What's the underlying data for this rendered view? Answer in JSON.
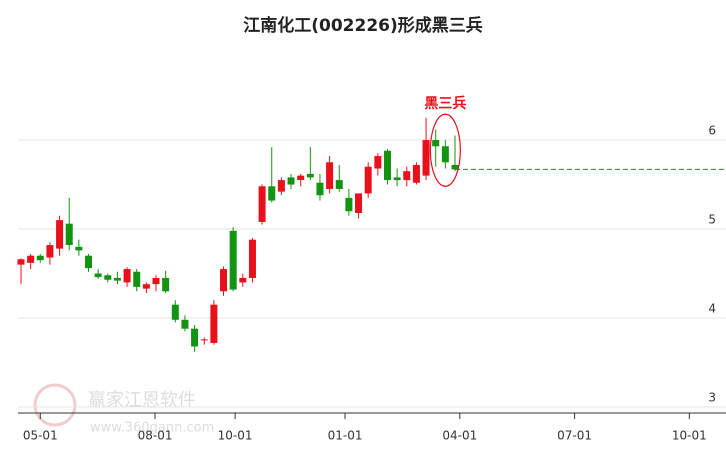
{
  "chart_data": {
    "type": "candlestick",
    "title": "江南化工(002226)形成黑三兵",
    "annotation": "黑三兵",
    "watermark": {
      "brand": "赢家江恩软件",
      "url": "www.360gann.com"
    },
    "up_color": "#e8101a",
    "down_color": "#129312",
    "annotation_color": "#e8101a",
    "x": [
      0,
      1,
      2,
      3,
      4,
      5,
      6,
      7,
      8,
      9,
      10,
      11,
      12,
      13,
      14,
      15,
      16,
      17,
      18,
      19,
      20,
      21,
      22,
      23,
      24,
      25,
      26,
      27,
      28,
      29,
      30,
      31,
      32,
      33,
      34,
      35,
      36,
      37,
      38,
      39,
      40,
      41,
      42,
      43,
      44,
      45
    ],
    "open": [
      4.6,
      4.62,
      4.7,
      4.68,
      4.78,
      5.06,
      4.8,
      4.7,
      4.5,
      4.48,
      4.45,
      4.4,
      4.52,
      4.33,
      4.38,
      4.45,
      4.15,
      3.98,
      3.88,
      3.75,
      3.72,
      4.3,
      4.98,
      4.4,
      4.45,
      5.08,
      5.48,
      5.42,
      5.58,
      5.55,
      5.62,
      5.52,
      5.45,
      5.55,
      5.35,
      5.18,
      5.4,
      5.68,
      5.88,
      5.58,
      5.55,
      5.52,
      5.6,
      6.0,
      5.93,
      5.72
    ],
    "high": [
      4.67,
      4.72,
      4.72,
      4.85,
      5.15,
      5.35,
      4.88,
      4.72,
      4.55,
      4.5,
      4.52,
      4.57,
      4.55,
      4.4,
      4.48,
      4.53,
      4.2,
      4.03,
      3.92,
      3.78,
      4.2,
      4.58,
      5.02,
      4.5,
      4.9,
      5.5,
      5.92,
      5.58,
      5.62,
      5.62,
      5.92,
      5.62,
      5.82,
      5.72,
      5.45,
      5.4,
      5.75,
      5.85,
      5.9,
      5.68,
      5.7,
      5.75,
      6.25,
      6.12,
      6.0,
      6.05
    ],
    "low": [
      4.38,
      4.55,
      4.62,
      4.6,
      4.7,
      4.76,
      4.7,
      4.52,
      4.44,
      4.4,
      4.38,
      4.35,
      4.3,
      4.28,
      4.3,
      4.28,
      3.95,
      3.85,
      3.62,
      3.7,
      3.7,
      4.25,
      4.3,
      4.35,
      4.4,
      5.05,
      5.3,
      5.38,
      5.45,
      5.48,
      5.55,
      5.32,
      5.4,
      5.42,
      5.15,
      5.12,
      5.35,
      5.6,
      5.5,
      5.48,
      5.48,
      5.5,
      5.55,
      5.7,
      5.68,
      5.65
    ],
    "close": [
      4.66,
      4.7,
      4.65,
      4.82,
      5.1,
      4.82,
      4.76,
      4.56,
      4.46,
      4.43,
      4.42,
      4.55,
      4.35,
      4.38,
      4.45,
      4.3,
      3.98,
      3.88,
      3.68,
      3.76,
      4.15,
      4.55,
      4.32,
      4.45,
      4.88,
      5.48,
      5.32,
      5.55,
      5.5,
      5.6,
      5.58,
      5.38,
      5.75,
      5.45,
      5.2,
      5.4,
      5.7,
      5.82,
      5.55,
      5.55,
      5.65,
      5.72,
      6.0,
      5.93,
      5.75,
      5.67
    ],
    "xlim": [
      -0.31,
      73.1
    ],
    "xticks": [
      {
        "value": 2.0,
        "label": "05-01"
      },
      {
        "value": 13.9,
        "label": "08-01"
      },
      {
        "value": 22.2,
        "label": "10-01"
      },
      {
        "value": 33.6,
        "label": "01-01"
      },
      {
        "value": 45.5,
        "label": "04-01"
      },
      {
        "value": 57.4,
        "label": "07-01"
      },
      {
        "value": 69.3,
        "label": "10-01"
      }
    ],
    "ylim": [
      3,
      6.95
    ],
    "yticks": [
      3,
      4,
      5,
      6
    ],
    "grid": true
  }
}
